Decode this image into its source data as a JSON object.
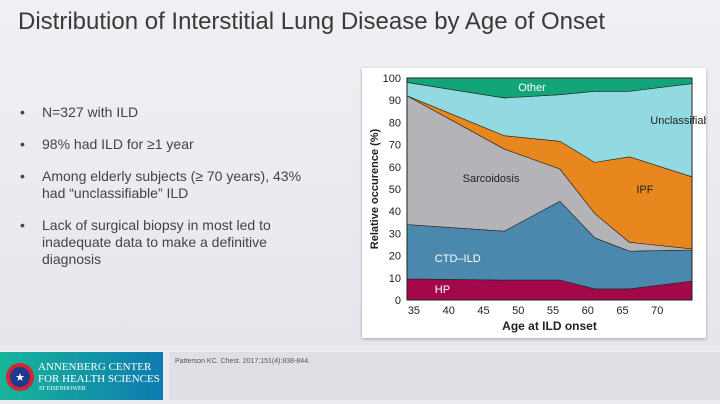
{
  "title": "Distribution of Interstitial Lung Disease by Age of Onset",
  "bullets": [
    "N=327 with ILD",
    "98% had ILD for ≥1 year",
    "Among elderly subjects (≥ 70 years), 43% had “unclassifiable” ILD",
    "Lack of surgical biopsy in most led to inadequate data to make a definitive diagnosis"
  ],
  "footer": {
    "logo_line1": "ANNENBERG CENTER",
    "logo_line2": "FOR HEALTH SCIENCES",
    "logo_line3": "AT EISENHOWER",
    "citation": "Patterson KC. Chest. 2017;151(4):838-844."
  },
  "chart_data": {
    "type": "area",
    "stacked": true,
    "xlabel": "Age at ILD onset",
    "ylabel": "Relative occurence (%)",
    "xlim": [
      34,
      75
    ],
    "ylim": [
      0,
      100
    ],
    "xticks": [
      35,
      40,
      45,
      50,
      55,
      60,
      65,
      70
    ],
    "yticks": [
      0,
      10,
      20,
      30,
      40,
      50,
      60,
      70,
      80,
      90,
      100
    ],
    "x": [
      34,
      48,
      56,
      61,
      66,
      75
    ],
    "series": [
      {
        "name": "HP",
        "color": "#a3094a",
        "label_color": "#ffffff",
        "values": [
          9.5,
          9,
          9,
          5,
          5,
          8.5
        ]
      },
      {
        "name": "CTD–ILD",
        "color": "#4a88ad",
        "label_color": "#ffffff",
        "values": [
          24.5,
          22,
          35.5,
          23,
          17,
          14
        ]
      },
      {
        "name": "Sarcoidosis",
        "color": "#b4b4b8",
        "label_color": "#222222",
        "values": [
          58,
          37,
          14.5,
          11,
          4,
          0.5
        ]
      },
      {
        "name": "IPF",
        "color": "#e8871e",
        "label_color": "#222222",
        "values": [
          0,
          6,
          12.5,
          23,
          38.5,
          32.5
        ]
      },
      {
        "name": "Unclassifiable",
        "color": "#93d9e2",
        "label_color": "#222222",
        "values": [
          6,
          17,
          21,
          32,
          29.5,
          42
        ]
      },
      {
        "name": "Other",
        "color": "#13a57a",
        "label_color": "#ffffff",
        "values": [
          2,
          9,
          7.5,
          6,
          6,
          2.5
        ]
      }
    ]
  }
}
